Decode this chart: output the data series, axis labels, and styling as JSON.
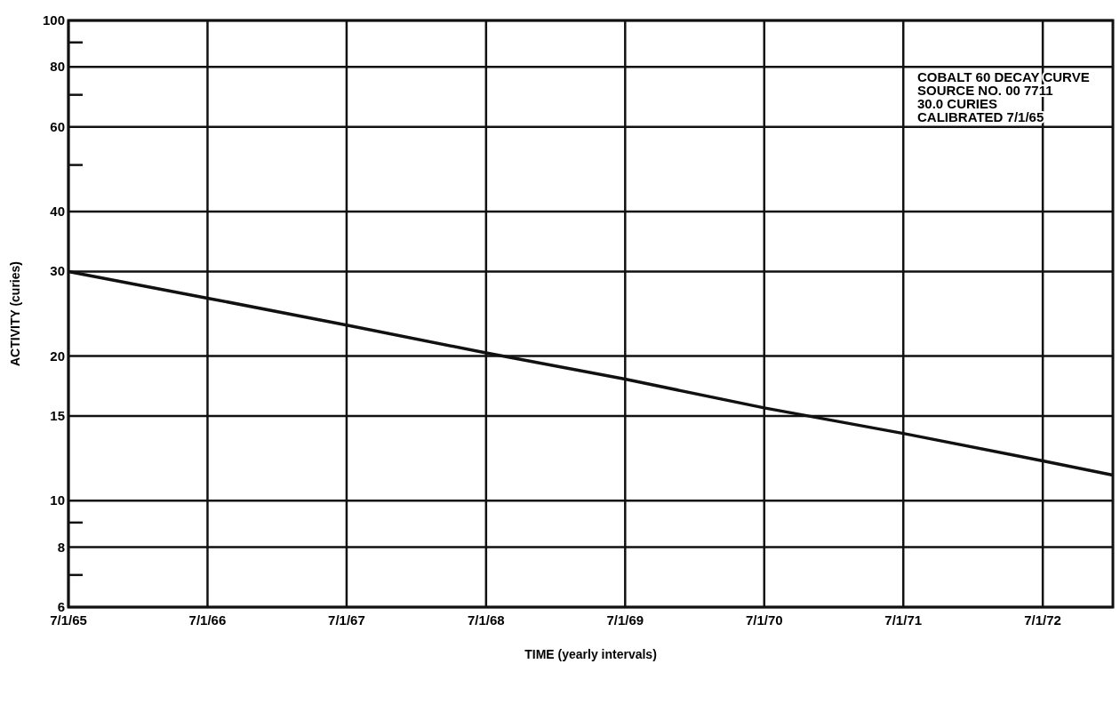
{
  "chart_data": {
    "type": "line",
    "xlabel": "TIME (yearly intervals)",
    "ylabel": "ACTIVITY (curies)",
    "annotations": [
      "COBALT 60 DECAY CURVE",
      "SOURCE NO. 00 7711",
      "30.0 CURIES",
      "CALIBRATED 7/1/65"
    ],
    "series": [
      {
        "color": "#111111",
        "x": [
          "1965-07-01",
          "1966-07-01",
          "1967-07-01",
          "1968-07-01",
          "1969-07-01",
          "1970-07-01",
          "1971-07-01",
          "1972-07-01",
          "1973-01-01"
        ],
        "values": [
          30,
          26.4,
          23.2,
          20.3,
          17.9,
          15.6,
          13.8,
          12.1,
          11.3
        ]
      }
    ],
    "log": "y",
    "grid": true,
    "marker": "none",
    "line_style": "solid",
    "xlim": [
      "1965-07-01",
      "1973-01-01"
    ],
    "xticks": [
      {
        "value": "1965-07-01",
        "label": "7/1/65"
      },
      {
        "value": "1966-07-01",
        "label": "7/1/66"
      },
      {
        "value": "1967-07-01",
        "label": "7/1/67"
      },
      {
        "value": "1968-07-01",
        "label": "7/1/68"
      },
      {
        "value": "1969-07-01",
        "label": "7/1/69"
      },
      {
        "value": "1970-07-01",
        "label": "7/1/70"
      },
      {
        "value": "1971-07-01",
        "label": "7/1/71"
      },
      {
        "value": "1972-07-01",
        "label": "7/1/72"
      }
    ],
    "ylim": [
      6,
      100
    ],
    "yticks": [
      6,
      {
        "value": 7,
        "label": null
      },
      8,
      {
        "value": 9,
        "label": null
      },
      10,
      15,
      20,
      30,
      40,
      {
        "value": 50,
        "label": null
      },
      60,
      {
        "value": 70,
        "label": null
      },
      80,
      {
        "value": 90,
        "label": null
      },
      100
    ]
  }
}
